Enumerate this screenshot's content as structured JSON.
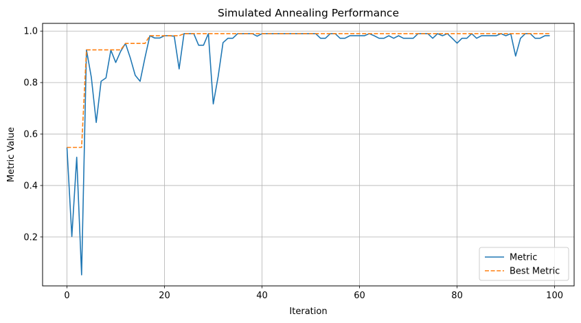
{
  "chart_data": {
    "type": "line",
    "title": "Simulated Annealing Performance",
    "xlabel": "Iteration",
    "ylabel": "Metric Value",
    "xlim": [
      -5,
      104
    ],
    "ylim": [
      0.01,
      1.03
    ],
    "xticks": [
      0,
      20,
      40,
      60,
      80,
      100
    ],
    "yticks": [
      0.2,
      0.4,
      0.6,
      0.8,
      1.0
    ],
    "xtick_labels": [
      "0",
      "20",
      "40",
      "60",
      "80",
      "100"
    ],
    "ytick_labels": [
      "0.2",
      "0.4",
      "0.6",
      "0.8",
      "1.0"
    ],
    "grid": true,
    "legend_position": "lower right",
    "x": [
      0,
      1,
      2,
      3,
      4,
      5,
      6,
      7,
      8,
      9,
      10,
      11,
      12,
      13,
      14,
      15,
      16,
      17,
      18,
      19,
      20,
      21,
      22,
      23,
      24,
      25,
      26,
      27,
      28,
      29,
      30,
      31,
      32,
      33,
      34,
      35,
      36,
      37,
      38,
      39,
      40,
      41,
      42,
      43,
      44,
      45,
      46,
      47,
      48,
      49,
      50,
      51,
      52,
      53,
      54,
      55,
      56,
      57,
      58,
      59,
      60,
      61,
      62,
      63,
      64,
      65,
      66,
      67,
      68,
      69,
      70,
      71,
      72,
      73,
      74,
      75,
      76,
      77,
      78,
      79,
      80,
      81,
      82,
      83,
      84,
      85,
      86,
      87,
      88,
      89,
      90,
      91,
      92,
      93,
      94,
      95,
      96,
      97,
      98,
      99
    ],
    "series": [
      {
        "name": "Metric",
        "color": "#1f77b4",
        "style": "solid",
        "values": [
          0.548,
          0.202,
          0.51,
          0.053,
          0.927,
          0.82,
          0.645,
          0.805,
          0.818,
          0.926,
          0.878,
          0.921,
          0.952,
          0.895,
          0.828,
          0.805,
          0.897,
          0.982,
          0.973,
          0.973,
          0.982,
          0.982,
          0.98,
          0.853,
          0.99,
          0.99,
          0.99,
          0.945,
          0.945,
          0.99,
          0.717,
          0.823,
          0.955,
          0.972,
          0.972,
          0.99,
          0.99,
          0.99,
          0.99,
          0.98,
          0.99,
          0.99,
          0.99,
          0.99,
          0.99,
          0.99,
          0.99,
          0.99,
          0.99,
          0.99,
          0.99,
          0.99,
          0.972,
          0.972,
          0.99,
          0.99,
          0.972,
          0.972,
          0.982,
          0.982,
          0.982,
          0.982,
          0.99,
          0.982,
          0.972,
          0.972,
          0.982,
          0.972,
          0.982,
          0.972,
          0.972,
          0.972,
          0.99,
          0.99,
          0.99,
          0.972,
          0.99,
          0.982,
          0.99,
          0.972,
          0.953,
          0.972,
          0.972,
          0.99,
          0.972,
          0.982,
          0.982,
          0.982,
          0.982,
          0.99,
          0.982,
          0.99,
          0.903,
          0.972,
          0.99,
          0.99,
          0.972,
          0.972,
          0.982,
          0.982
        ]
      },
      {
        "name": "Best Metric",
        "color": "#ff7f0e",
        "style": "dashed",
        "values": [
          0.548,
          0.548,
          0.548,
          0.548,
          0.927,
          0.927,
          0.927,
          0.927,
          0.927,
          0.927,
          0.927,
          0.927,
          0.952,
          0.952,
          0.952,
          0.952,
          0.952,
          0.982,
          0.982,
          0.982,
          0.982,
          0.982,
          0.982,
          0.982,
          0.99,
          0.99,
          0.99,
          0.99,
          0.99,
          0.99,
          0.99,
          0.99,
          0.99,
          0.99,
          0.99,
          0.99,
          0.99,
          0.99,
          0.99,
          0.99,
          0.99,
          0.99,
          0.99,
          0.99,
          0.99,
          0.99,
          0.99,
          0.99,
          0.99,
          0.99,
          0.99,
          0.99,
          0.99,
          0.99,
          0.99,
          0.99,
          0.99,
          0.99,
          0.99,
          0.99,
          0.99,
          0.99,
          0.99,
          0.99,
          0.99,
          0.99,
          0.99,
          0.99,
          0.99,
          0.99,
          0.99,
          0.99,
          0.99,
          0.99,
          0.99,
          0.99,
          0.99,
          0.99,
          0.99,
          0.99,
          0.99,
          0.99,
          0.99,
          0.99,
          0.99,
          0.99,
          0.99,
          0.99,
          0.99,
          0.99,
          0.99,
          0.99,
          0.99,
          0.99,
          0.99,
          0.99,
          0.99,
          0.99,
          0.99,
          0.99
        ]
      }
    ]
  }
}
